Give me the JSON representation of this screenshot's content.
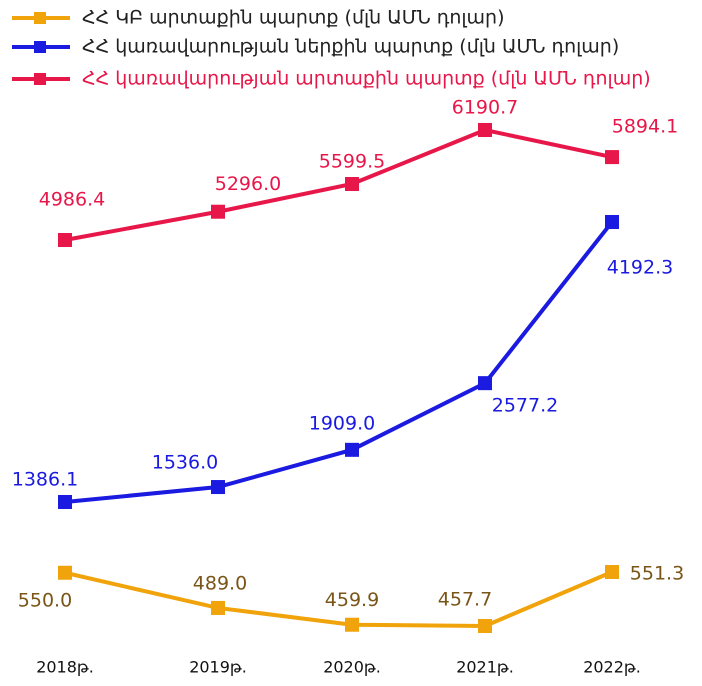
{
  "chart_data": {
    "type": "line",
    "categories": [
      "2018թ.",
      "2019թ.",
      "2020թ.",
      "2021թ.",
      "2022թ."
    ],
    "series": [
      {
        "name": "ՀՀ ԿԲ արտաքին պարտք (մլն ԱՄՆ դոլար)",
        "color": "#f0a30a",
        "values": [
          550.0,
          489.0,
          459.9,
          457.7,
          551.3
        ],
        "value_labels": [
          "550.0",
          "489.0",
          "459.9",
          "457.7",
          "551.3"
        ]
      },
      {
        "name": "ՀՀ կառավարության ներքին պարտք (մլն ԱՄՆ դոլար)",
        "color": "#1a1ae0",
        "values": [
          1386.1,
          1536.0,
          1909.0,
          2577.2,
          4192.3
        ],
        "value_labels": [
          "1386.1",
          "1536.0",
          "1909.0",
          "2577.2",
          "4192.3"
        ]
      },
      {
        "name": "ՀՀ կառավարության արտաքին պարտք (մլն ԱՄՆ դոլար)",
        "color": "#e8174a",
        "values": [
          4986.4,
          5296.0,
          5599.5,
          6190.7,
          5894.1
        ],
        "value_labels": [
          "4986.4",
          "5296.0",
          "5599.5",
          "6190.7",
          "5894.1"
        ]
      }
    ]
  }
}
